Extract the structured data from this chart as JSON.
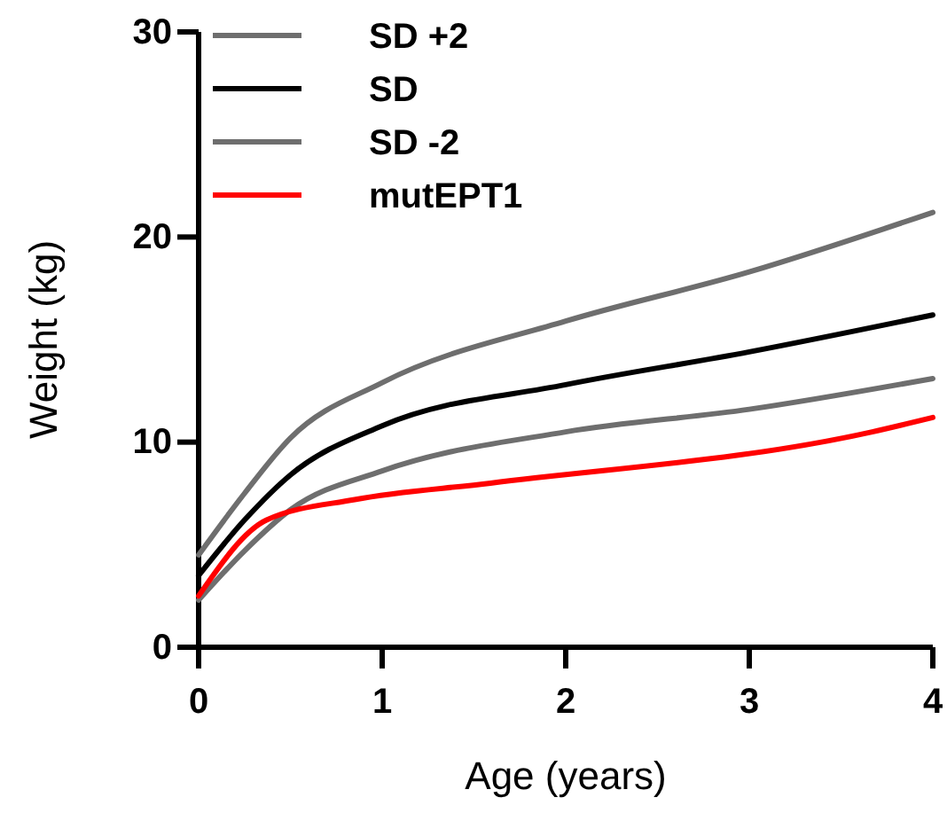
{
  "chart_data": {
    "type": "line",
    "xlabel": "Age (years)",
    "ylabel": "Weight (kg)",
    "xlim": [
      0,
      4
    ],
    "ylim": [
      0,
      30
    ],
    "xticks": [
      0,
      1,
      2,
      3,
      4
    ],
    "yticks": [
      0,
      10,
      20,
      30
    ],
    "grid": false,
    "legend": "top left",
    "line_style": "solid",
    "series": [
      {
        "name": "SD +2",
        "color": "#6e6e6e",
        "x": [
          0,
          0.25,
          0.5,
          1,
          2,
          3,
          4
        ],
        "values": [
          4.5,
          7.5,
          10.2,
          12.9,
          15.9,
          18.3,
          21.2
        ]
      },
      {
        "name": "SD",
        "color": "#000000",
        "x": [
          0,
          0.25,
          0.5,
          1,
          2,
          3,
          4
        ],
        "values": [
          3.5,
          6.2,
          8.4,
          10.8,
          12.8,
          14.4,
          16.2
        ]
      },
      {
        "name": "SD -2",
        "color": "#6e6e6e",
        "x": [
          0,
          0.25,
          0.5,
          1,
          2,
          3,
          4
        ],
        "values": [
          2.3,
          4.7,
          6.7,
          8.6,
          10.5,
          11.6,
          13.1
        ]
      },
      {
        "name": "mutEPT1",
        "color": "#ff0000",
        "x": [
          0,
          0.37,
          0.85,
          1.59,
          3.67,
          4
        ],
        "values": [
          2.5,
          6.2,
          7.2,
          8.0,
          10.5,
          11.2
        ]
      }
    ]
  }
}
